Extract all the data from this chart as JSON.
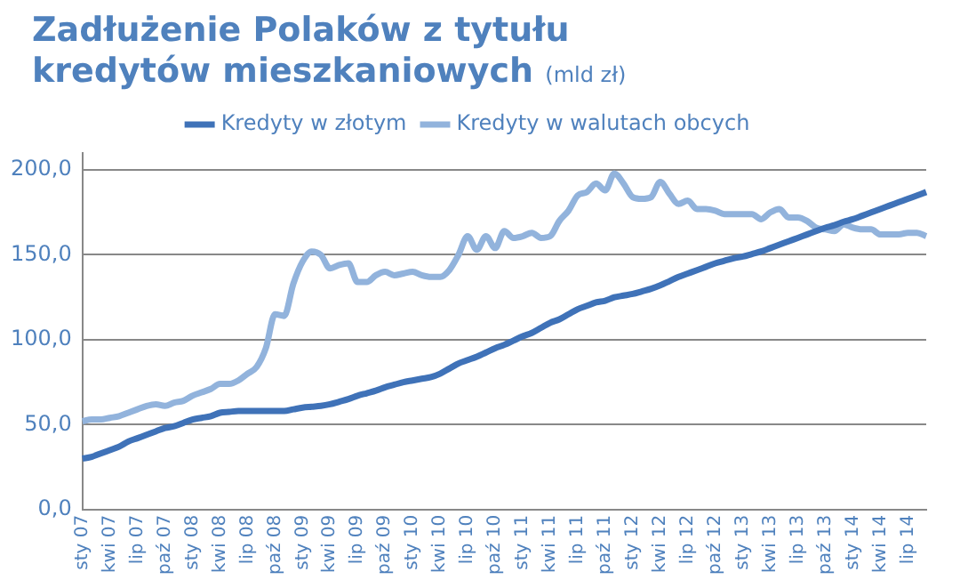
{
  "chart_data": {
    "type": "line",
    "title": "Zadłużenie Polaków z tytułu kredytów mieszkaniowych",
    "subtitle": "(mld zł)",
    "categories": [
      "sty 07",
      null,
      null,
      "kwi 07",
      null,
      null,
      "lip 07",
      null,
      null,
      "paź 07",
      null,
      null,
      "sty 08",
      null,
      null,
      "kwi 08",
      null,
      null,
      "lip 08",
      null,
      null,
      "paź 08",
      null,
      null,
      "sty 09",
      null,
      null,
      "kwi 09",
      null,
      null,
      "lip 09",
      null,
      null,
      "paź 09",
      null,
      null,
      "sty 10",
      null,
      null,
      "kwi 10",
      null,
      null,
      "lip 10",
      null,
      null,
      "paź 10",
      null,
      null,
      "sty 11",
      null,
      null,
      "kwi 11",
      null,
      null,
      "lip 11",
      null,
      null,
      "paź 11",
      null,
      null,
      "sty 12",
      null,
      null,
      "kwi 12",
      null,
      null,
      "lip 12",
      null,
      null,
      "paź 12",
      null,
      null,
      "sty 13",
      null,
      null,
      "kwi 13",
      null,
      null,
      "lip 13",
      null,
      null,
      "paź 13",
      null,
      null,
      "sty 14",
      null,
      null,
      "kwi 14",
      null,
      null,
      "lip 14",
      null,
      null
    ],
    "series": [
      {
        "name": "Kredyty w złotym",
        "color": "#3f72b8",
        "values": [
          30,
          31,
          33,
          35,
          37,
          40,
          42,
          44,
          46,
          48,
          49,
          51,
          53,
          54,
          55,
          57,
          57.5,
          58,
          58,
          58,
          58,
          58,
          58,
          59,
          60,
          60.5,
          61,
          62,
          63.5,
          65,
          67,
          68.5,
          70,
          72,
          73.5,
          75,
          76,
          77,
          78,
          80,
          83,
          86,
          88,
          90,
          92.5,
          95,
          97,
          99.5,
          102,
          104,
          107,
          110,
          112,
          115,
          118,
          120,
          122,
          123,
          125,
          126,
          127,
          128.5,
          130,
          132,
          134.5,
          137,
          139,
          141,
          143,
          145,
          146.5,
          148,
          149,
          150.5,
          152,
          154,
          156,
          158,
          160,
          162,
          164,
          166,
          167.5,
          169.5,
          171,
          173,
          175,
          177,
          179,
          181,
          183,
          185,
          187
        ]
      },
      {
        "name": "Kredyty w walutach obcych",
        "color": "#92b3dc",
        "values": [
          52,
          53,
          53,
          54,
          55,
          57,
          59,
          61,
          62,
          61,
          63,
          64,
          67,
          69,
          71,
          74,
          74,
          76,
          80,
          84,
          95,
          115,
          114,
          133,
          146,
          152,
          150,
          142,
          144,
          145,
          134,
          134,
          138,
          140,
          138,
          139,
          140,
          138,
          137,
          137,
          141,
          150,
          161,
          153,
          161,
          154,
          164,
          160,
          161,
          163,
          160,
          161,
          170,
          176,
          185,
          187,
          192,
          188,
          198,
          192,
          184,
          183,
          184,
          193,
          186,
          180,
          182,
          177,
          177,
          176,
          174,
          174,
          174,
          174,
          171,
          175,
          177,
          172,
          172,
          170,
          166,
          165,
          164,
          168,
          166,
          165,
          165,
          162,
          162,
          162,
          163,
          163,
          161
        ]
      }
    ],
    "ylim": [
      0,
      210
    ],
    "yticks": [
      {
        "value": 0,
        "label": "0,0"
      },
      {
        "value": 50,
        "label": "50,0"
      },
      {
        "value": 100,
        "label": "100,0"
      },
      {
        "value": 150,
        "label": "150,0"
      },
      {
        "value": 200,
        "label": "200,0"
      }
    ],
    "grid": "y",
    "legend": "top",
    "marker": "none",
    "line_style": "solid"
  }
}
